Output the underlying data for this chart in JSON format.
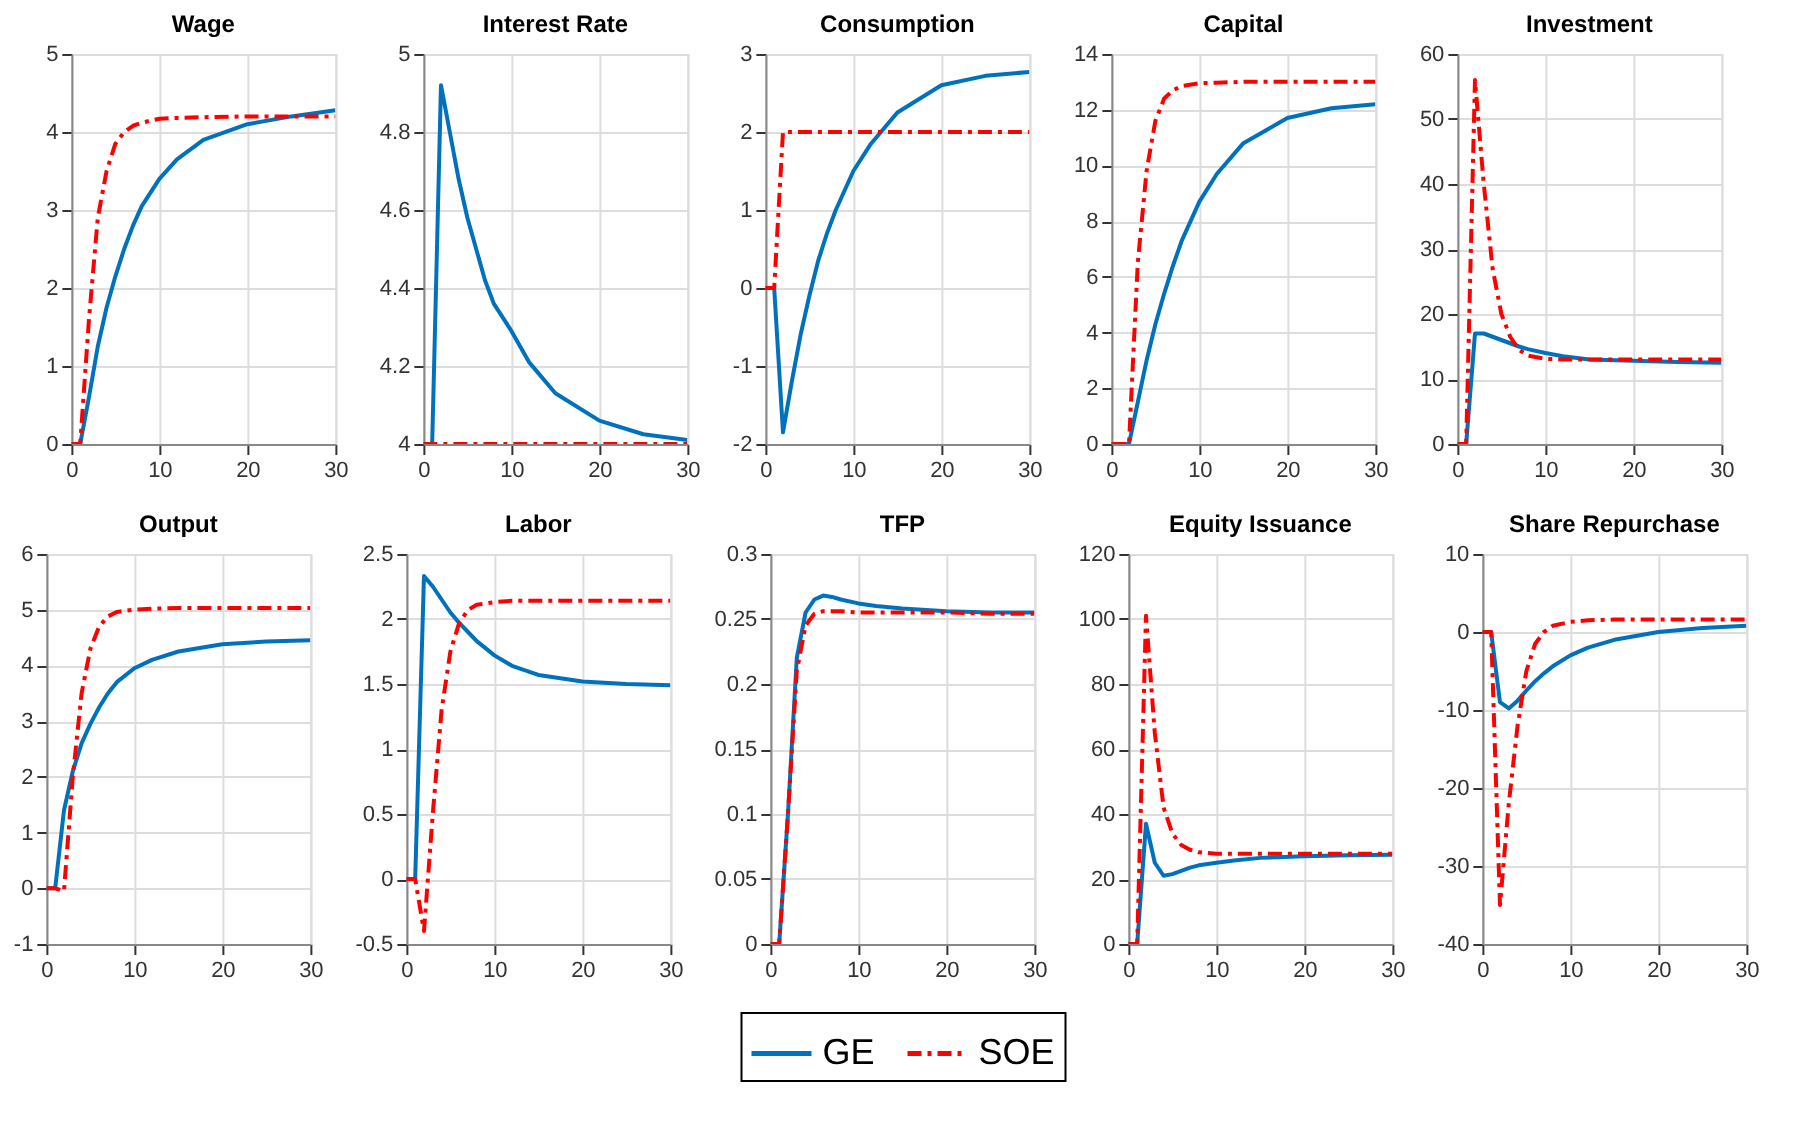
{
  "chart_data": [
    {
      "type": "line",
      "title": "Wage",
      "x": [
        0,
        1,
        2,
        3,
        4,
        5,
        6,
        7,
        8,
        10,
        12,
        15,
        20,
        25,
        30
      ],
      "xlim": [
        0,
        30
      ],
      "xticks": [
        0,
        10,
        20,
        30
      ],
      "ylim": [
        0,
        5
      ],
      "yticks": [
        0,
        1,
        2,
        3,
        4,
        5
      ],
      "grid": true,
      "legend": "bottom",
      "series": [
        {
          "name": "GE",
          "color": "#0072bd",
          "line_style": "solid",
          "values": [
            0,
            0,
            0.6,
            1.25,
            1.75,
            2.15,
            2.5,
            2.8,
            3.05,
            3.4,
            3.65,
            3.9,
            4.1,
            4.2,
            4.28
          ]
        },
        {
          "name": "SOE",
          "color": "#ff0000",
          "line_style": "dashed",
          "values": [
            0,
            0,
            1.6,
            2.9,
            3.5,
            3.85,
            4.0,
            4.08,
            4.12,
            4.17,
            4.18,
            4.19,
            4.2,
            4.2,
            4.2
          ]
        }
      ]
    },
    {
      "type": "line",
      "title": "Interest Rate",
      "x": [
        0,
        1,
        2,
        3,
        4,
        5,
        6,
        7,
        8,
        10,
        12,
        15,
        20,
        25,
        30
      ],
      "xlim": [
        0,
        30
      ],
      "xticks": [
        0,
        10,
        20,
        30
      ],
      "ylim": [
        4,
        5
      ],
      "yticks": [
        4,
        4.2,
        4.4,
        4.6,
        4.8,
        5
      ],
      "grid": true,
      "series": [
        {
          "color": "#0072bd",
          "line_style": "solid",
          "values": [
            4,
            4,
            4.92,
            4.8,
            4.68,
            4.58,
            4.5,
            4.42,
            4.36,
            4.29,
            4.21,
            4.13,
            4.06,
            4.025,
            4.01
          ]
        },
        {
          "color": "#ff0000",
          "line_style": "dashed",
          "values": [
            4,
            4,
            4,
            4,
            4,
            4,
            4,
            4,
            4,
            4,
            4,
            4,
            4,
            4,
            4
          ]
        }
      ]
    },
    {
      "type": "line",
      "title": "Consumption",
      "x": [
        0,
        1,
        2,
        3,
        4,
        5,
        6,
        7,
        8,
        10,
        12,
        15,
        20,
        25,
        30
      ],
      "xlim": [
        0,
        30
      ],
      "xticks": [
        0,
        10,
        20,
        30
      ],
      "ylim": [
        -2,
        3
      ],
      "yticks": [
        -2,
        -1,
        0,
        1,
        2,
        3
      ],
      "grid": true,
      "series": [
        {
          "color": "#0072bd",
          "line_style": "solid",
          "values": [
            0,
            0,
            -1.85,
            -1.2,
            -0.6,
            -0.1,
            0.35,
            0.7,
            1.0,
            1.5,
            1.85,
            2.25,
            2.6,
            2.72,
            2.77
          ]
        },
        {
          "color": "#ff0000",
          "line_style": "dashed",
          "values": [
            0,
            0,
            2,
            2,
            2,
            2,
            2,
            2,
            2,
            2,
            2,
            2,
            2,
            2,
            2
          ]
        }
      ]
    },
    {
      "type": "line",
      "title": "Capital",
      "x": [
        0,
        1,
        2,
        3,
        4,
        5,
        6,
        7,
        8,
        10,
        12,
        15,
        20,
        25,
        30
      ],
      "xlim": [
        0,
        30
      ],
      "xticks": [
        0,
        10,
        20,
        30
      ],
      "ylim": [
        0,
        14
      ],
      "yticks": [
        0,
        2,
        4,
        6,
        8,
        10,
        12,
        14
      ],
      "grid": true,
      "series": [
        {
          "color": "#0072bd",
          "line_style": "solid",
          "values": [
            0,
            0,
            0,
            1.5,
            3.0,
            4.3,
            5.4,
            6.4,
            7.3,
            8.7,
            9.7,
            10.8,
            11.7,
            12.05,
            12.2
          ]
        },
        {
          "color": "#ff0000",
          "line_style": "dashed",
          "values": [
            0,
            0,
            0,
            6.5,
            9.8,
            11.6,
            12.4,
            12.7,
            12.85,
            12.95,
            12.97,
            13,
            13,
            13,
            13
          ]
        }
      ]
    },
    {
      "type": "line",
      "title": "Investment",
      "x": [
        0,
        1,
        2,
        3,
        4,
        5,
        6,
        7,
        8,
        10,
        12,
        15,
        20,
        25,
        30
      ],
      "xlim": [
        0,
        30
      ],
      "xticks": [
        0,
        10,
        20,
        30
      ],
      "ylim": [
        0,
        60
      ],
      "yticks": [
        0,
        10,
        20,
        30,
        40,
        50,
        60
      ],
      "grid": true,
      "series": [
        {
          "color": "#0072bd",
          "line_style": "solid",
          "values": [
            0,
            0,
            17,
            17,
            16.5,
            16,
            15.5,
            15,
            14.6,
            14,
            13.5,
            13,
            12.8,
            12.6,
            12.5
          ]
        },
        {
          "color": "#ff0000",
          "line_style": "dashed",
          "values": [
            0,
            0,
            56,
            40,
            27,
            20,
            16.5,
            14.5,
            13.6,
            13.1,
            13,
            13,
            13,
            13,
            13
          ]
        }
      ]
    },
    {
      "type": "line",
      "title": "Output",
      "x": [
        0,
        1,
        2,
        3,
        4,
        5,
        6,
        7,
        8,
        10,
        12,
        15,
        20,
        25,
        30
      ],
      "xlim": [
        0,
        30
      ],
      "xticks": [
        0,
        10,
        20,
        30
      ],
      "ylim": [
        -1,
        6
      ],
      "yticks": [
        -1,
        0,
        1,
        2,
        3,
        4,
        5,
        6
      ],
      "grid": true,
      "series": [
        {
          "color": "#0072bd",
          "line_style": "solid",
          "values": [
            0,
            0,
            1.4,
            2.1,
            2.6,
            2.95,
            3.25,
            3.5,
            3.7,
            3.95,
            4.1,
            4.25,
            4.38,
            4.43,
            4.45
          ]
        },
        {
          "color": "#ff0000",
          "line_style": "dashed",
          "values": [
            0,
            0,
            -0.05,
            2.0,
            3.5,
            4.3,
            4.7,
            4.88,
            4.96,
            5.0,
            5.02,
            5.03,
            5.03,
            5.03,
            5.03
          ]
        }
      ]
    },
    {
      "type": "line",
      "title": "Labor",
      "x": [
        0,
        1,
        2,
        3,
        4,
        5,
        6,
        7,
        8,
        10,
        12,
        15,
        20,
        25,
        30
      ],
      "xlim": [
        0,
        30
      ],
      "xticks": [
        0,
        10,
        20,
        30
      ],
      "ylim": [
        -0.5,
        2.5
      ],
      "yticks": [
        -0.5,
        0,
        0.5,
        1,
        1.5,
        2,
        2.5
      ],
      "grid": true,
      "series": [
        {
          "color": "#0072bd",
          "line_style": "solid",
          "values": [
            0,
            0,
            2.33,
            2.25,
            2.15,
            2.05,
            1.97,
            1.9,
            1.83,
            1.72,
            1.64,
            1.57,
            1.52,
            1.5,
            1.49
          ]
        },
        {
          "color": "#ff0000",
          "line_style": "dashed",
          "values": [
            0,
            0,
            -0.4,
            0.5,
            1.3,
            1.75,
            1.97,
            2.07,
            2.11,
            2.13,
            2.14,
            2.14,
            2.14,
            2.14,
            2.14
          ]
        }
      ]
    },
    {
      "type": "line",
      "title": "TFP",
      "x": [
        0,
        1,
        2,
        3,
        4,
        5,
        6,
        7,
        8,
        10,
        12,
        15,
        20,
        25,
        30
      ],
      "xlim": [
        0,
        30
      ],
      "xticks": [
        0,
        10,
        20,
        30
      ],
      "ylim": [
        0,
        0.3
      ],
      "yticks": [
        0,
        0.05,
        0.1,
        0.15,
        0.2,
        0.25,
        0.3
      ],
      "grid": true,
      "series": [
        {
          "color": "#0072bd",
          "line_style": "solid",
          "values": [
            0,
            0,
            0.1,
            0.22,
            0.255,
            0.265,
            0.268,
            0.267,
            0.265,
            0.262,
            0.26,
            0.258,
            0.256,
            0.255,
            0.255
          ]
        },
        {
          "color": "#ff0000",
          "line_style": "dashed",
          "values": [
            0,
            0,
            0.1,
            0.21,
            0.245,
            0.254,
            0.256,
            0.256,
            0.256,
            0.255,
            0.255,
            0.255,
            0.255,
            0.254,
            0.254
          ]
        }
      ]
    },
    {
      "type": "line",
      "title": "Equity Issuance",
      "x": [
        0,
        1,
        2,
        3,
        4,
        5,
        6,
        7,
        8,
        10,
        12,
        15,
        20,
        25,
        30
      ],
      "xlim": [
        0,
        30
      ],
      "xticks": [
        0,
        10,
        20,
        30
      ],
      "ylim": [
        0,
        120
      ],
      "yticks": [
        0,
        20,
        40,
        60,
        80,
        100,
        120
      ],
      "grid": true,
      "series": [
        {
          "color": "#0072bd",
          "line_style": "solid",
          "values": [
            0,
            0,
            37,
            25,
            21,
            21.5,
            22.5,
            23.5,
            24.2,
            25,
            25.7,
            26.5,
            27,
            27.3,
            27.5
          ]
        },
        {
          "color": "#ff0000",
          "line_style": "dashed",
          "values": [
            0,
            0,
            101,
            65,
            42,
            34,
            30.5,
            29,
            28.2,
            27.8,
            27.8,
            27.8,
            27.8,
            27.8,
            27.8
          ]
        }
      ]
    },
    {
      "type": "line",
      "title": "Share Repurchase",
      "x": [
        0,
        1,
        2,
        3,
        4,
        5,
        6,
        7,
        8,
        10,
        12,
        15,
        20,
        25,
        30
      ],
      "xlim": [
        0,
        30
      ],
      "xticks": [
        0,
        10,
        20,
        30
      ],
      "ylim": [
        -40,
        10
      ],
      "yticks": [
        -40,
        -30,
        -20,
        -10,
        0,
        10
      ],
      "grid": true,
      "series": [
        {
          "color": "#0072bd",
          "line_style": "solid",
          "values": [
            0,
            0,
            -9,
            -9.8,
            -8.8,
            -7.5,
            -6.3,
            -5.3,
            -4.4,
            -3,
            -2,
            -1,
            0,
            0.5,
            0.8
          ]
        },
        {
          "color": "#ff0000",
          "line_style": "dashed",
          "values": [
            0,
            0,
            -35,
            -22,
            -12,
            -5,
            -1.5,
            0,
            0.8,
            1.3,
            1.5,
            1.6,
            1.6,
            1.6,
            1.6
          ]
        }
      ]
    }
  ]
}
